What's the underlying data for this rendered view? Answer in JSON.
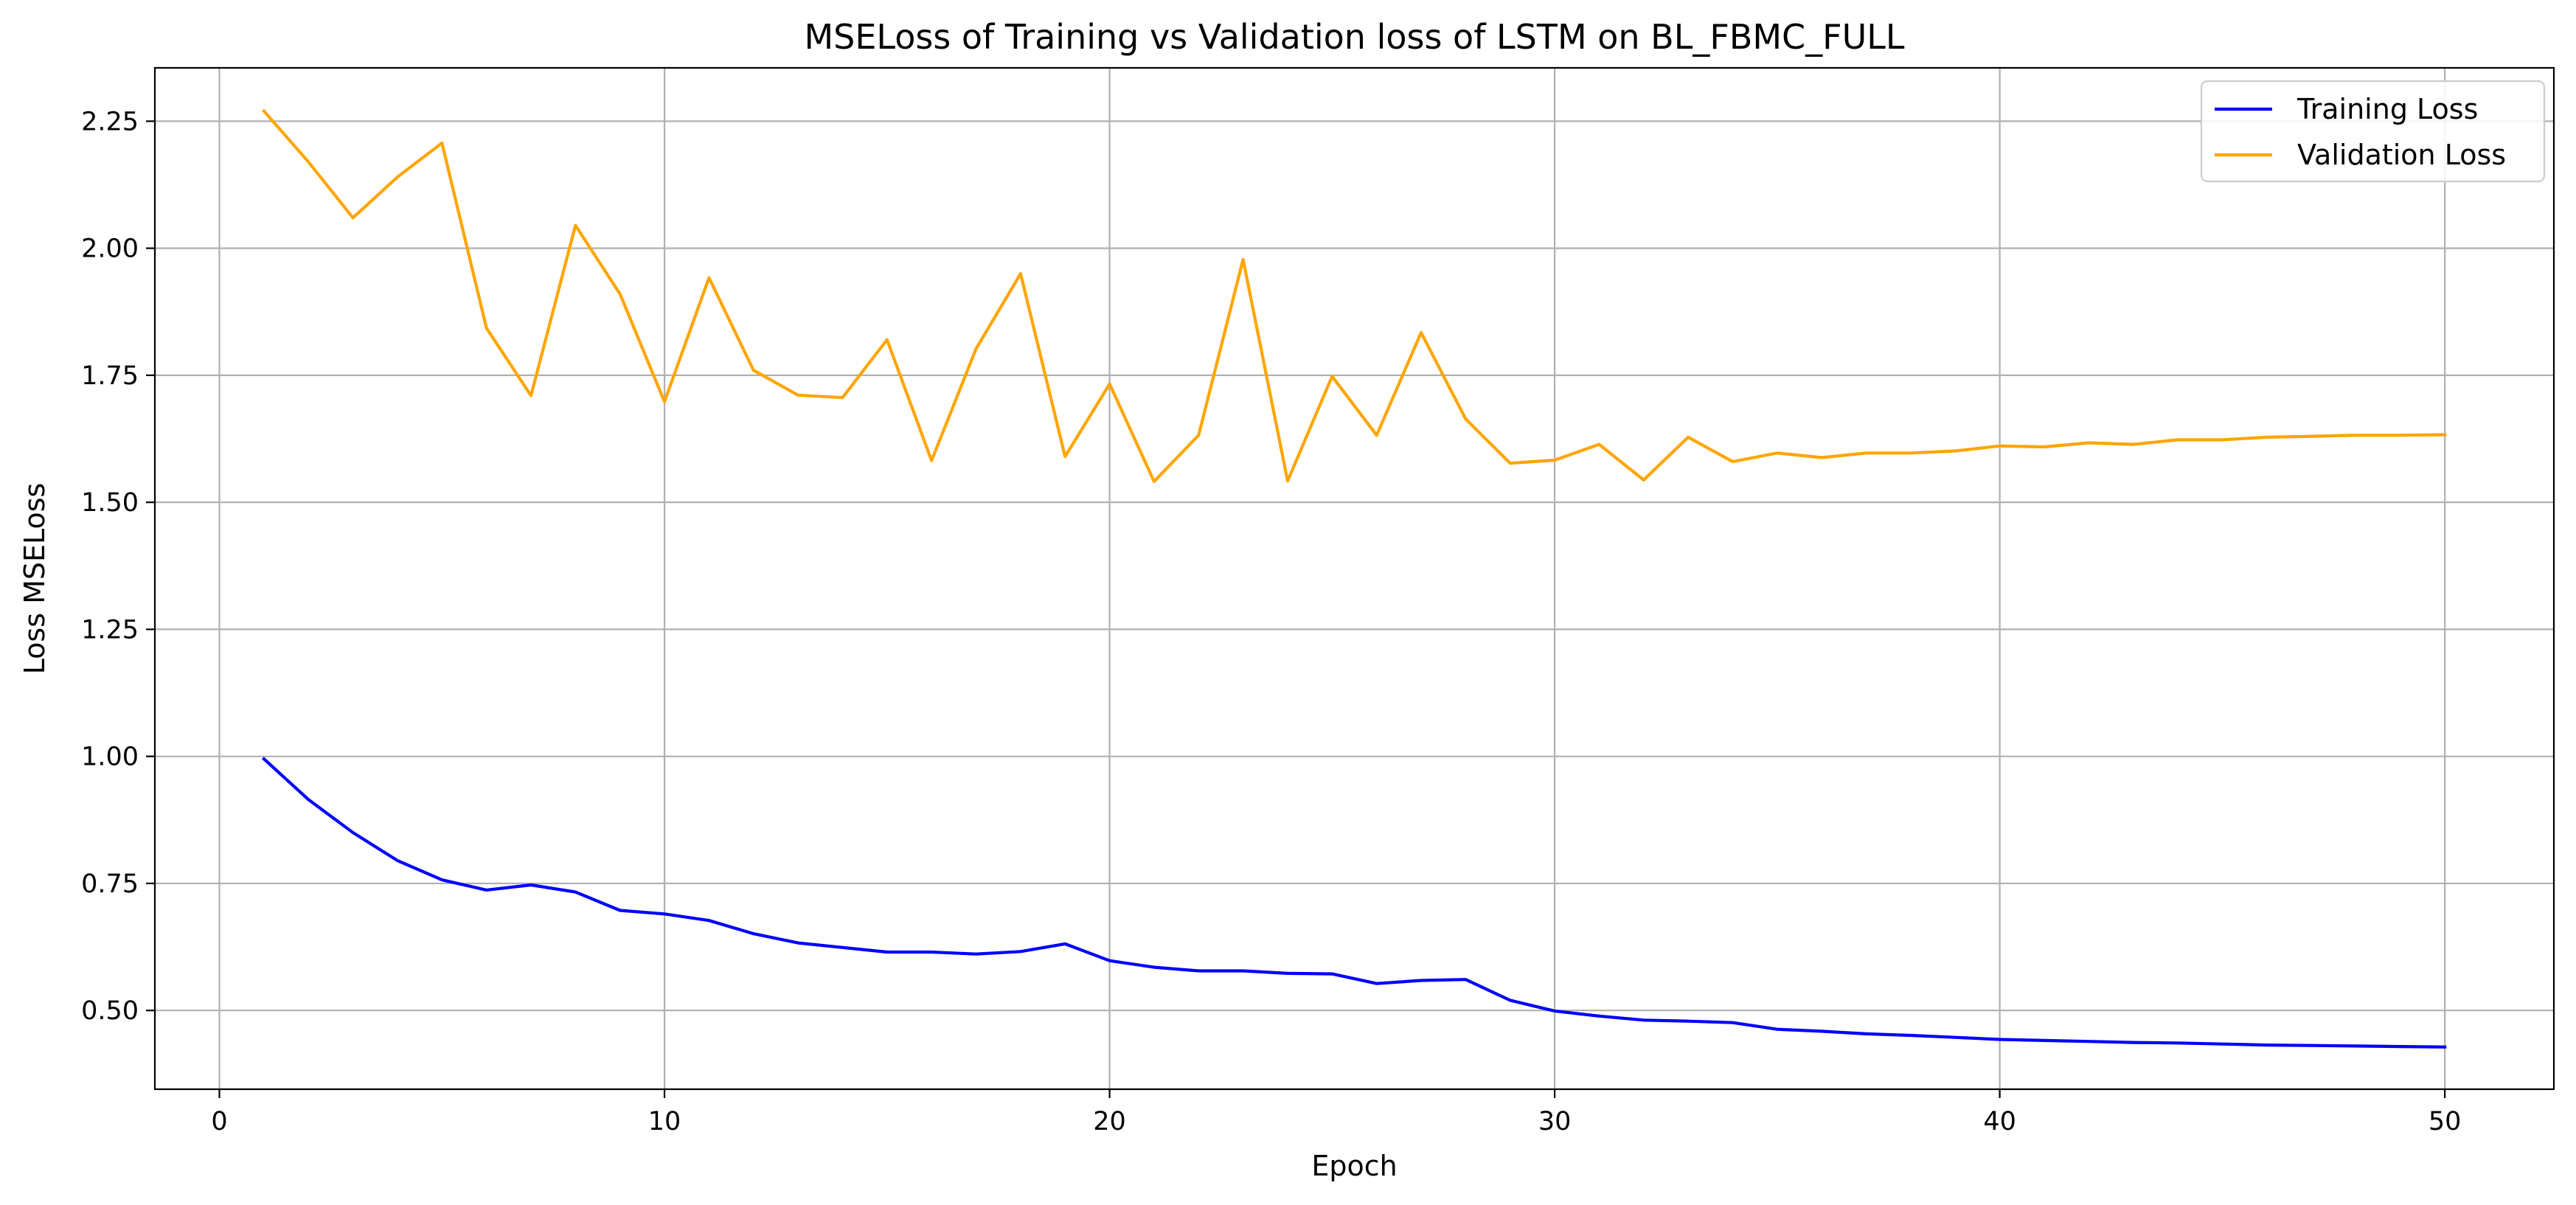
{
  "chart_data": {
    "type": "line",
    "title": "MSELoss of Training vs Validation loss of LSTM on BL_FBMC_FULL",
    "xlabel": "Epoch",
    "ylabel": "Loss MSELoss",
    "xlim": [
      -1.45,
      52.45
    ],
    "ylim": [
      0.345,
      2.355
    ],
    "xticks": [
      0,
      10,
      20,
      30,
      40,
      50
    ],
    "xtick_labels": [
      "0",
      "10",
      "20",
      "30",
      "40",
      "50"
    ],
    "yticks": [
      0.5,
      0.75,
      1.0,
      1.25,
      1.5,
      1.75,
      2.0,
      2.25
    ],
    "ytick_labels": [
      "0.50",
      "0.75",
      "1.00",
      "1.25",
      "1.50",
      "1.75",
      "2.00",
      "2.25"
    ],
    "grid": true,
    "legend_position": "top-right",
    "x": [
      1,
      2,
      3,
      4,
      5,
      6,
      7,
      8,
      9,
      10,
      11,
      12,
      13,
      14,
      15,
      16,
      17,
      18,
      19,
      20,
      21,
      22,
      23,
      24,
      25,
      26,
      27,
      28,
      29,
      30,
      31,
      32,
      33,
      34,
      35,
      36,
      37,
      38,
      39,
      40,
      41,
      42,
      43,
      44,
      45,
      46,
      47,
      48,
      49,
      50
    ],
    "series": [
      {
        "name": "Training Loss",
        "color": "#0000ff",
        "values": [
          0.995,
          0.915,
          0.85,
          0.795,
          0.757,
          0.737,
          0.747,
          0.733,
          0.697,
          0.69,
          0.677,
          0.651,
          0.633,
          0.624,
          0.615,
          0.615,
          0.611,
          0.616,
          0.631,
          0.598,
          0.585,
          0.578,
          0.578,
          0.573,
          0.572,
          0.553,
          0.559,
          0.561,
          0.52,
          0.499,
          0.489,
          0.481,
          0.479,
          0.476,
          0.463,
          0.459,
          0.454,
          0.451,
          0.447,
          0.443,
          0.441,
          0.439,
          0.437,
          0.436,
          0.434,
          0.432,
          0.431,
          0.43,
          0.429,
          0.428
        ]
      },
      {
        "name": "Validation Loss",
        "color": "#ffa500",
        "values": [
          2.27,
          2.17,
          2.06,
          2.14,
          2.207,
          1.843,
          1.71,
          2.045,
          1.91,
          1.698,
          1.942,
          1.76,
          1.711,
          1.706,
          1.82,
          1.582,
          1.802,
          1.95,
          1.59,
          1.733,
          1.541,
          1.632,
          1.978,
          1.542,
          1.748,
          1.632,
          1.834,
          1.664,
          1.577,
          1.583,
          1.614,
          1.544,
          1.628,
          1.58,
          1.597,
          1.588,
          1.597,
          1.597,
          1.601,
          1.611,
          1.609,
          1.617,
          1.614,
          1.623,
          1.623,
          1.628,
          1.63,
          1.632,
          1.632,
          1.633
        ]
      }
    ]
  }
}
